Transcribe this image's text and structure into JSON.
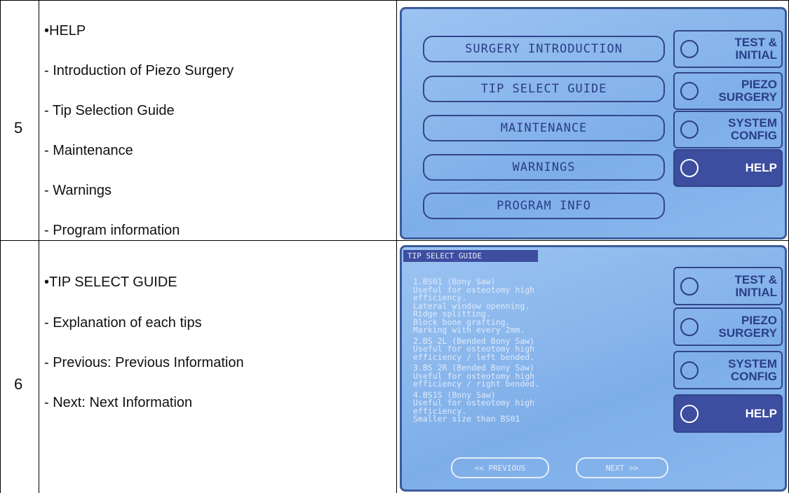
{
  "table": {
    "rows": [
      {
        "number": "5",
        "title": "•HELP",
        "items": [
          "- Introduction of Piezo Surgery",
          "- Tip Selection Guide",
          "- Maintenance",
          "- Warnings",
          "- Program information"
        ],
        "screen": {
          "buttons": [
            "SURGERY INTRODUCTION",
            "TIP SELECT GUIDE",
            "MAINTENANCE",
            "WARNINGS",
            "PROGRAM INFO"
          ],
          "side": [
            [
              "TEST &",
              "INITIAL"
            ],
            [
              "PIEZO",
              "SURGERY"
            ],
            [
              "SYSTEM",
              "CONFIG"
            ],
            [
              "HELP"
            ]
          ]
        }
      },
      {
        "number": "6",
        "title": "•TIP SELECT GUIDE",
        "items": [
          "- Explanation of each tips",
          "- Previous: Previous Information",
          "- Next: Next Information"
        ],
        "screen": {
          "header": "TIP SELECT GUIDE",
          "entries": [
            [
              "1.BS01 (Bony Saw)",
              "Useful for osteotomy high",
              "efficiency.",
              "Lateral window openning.",
              "Ridge splitting.",
              "Block bone grafting.",
              "Marking with every 2mm."
            ],
            [
              "2.BS 2L (Bended Bony Saw)",
              "Useful for osteotomy high",
              "efficiency / left bended."
            ],
            [
              "3.BS 2R (Bended Bony Saw)",
              "Useful for osteotomy high",
              "efficiency / right bended."
            ],
            [
              "4.BS1S (Bony Saw)",
              "Useful for osteotomy high",
              "efficiency.",
              "Smaller size than BS01"
            ]
          ],
          "nav": [
            "<< PREVIOUS",
            "NEXT >>"
          ],
          "side": [
            [
              "TEST &",
              "INITIAL"
            ],
            [
              "PIEZO",
              "SURGERY"
            ],
            [
              "SYSTEM",
              "CONFIG"
            ],
            [
              "HELP"
            ]
          ]
        }
      }
    ]
  }
}
